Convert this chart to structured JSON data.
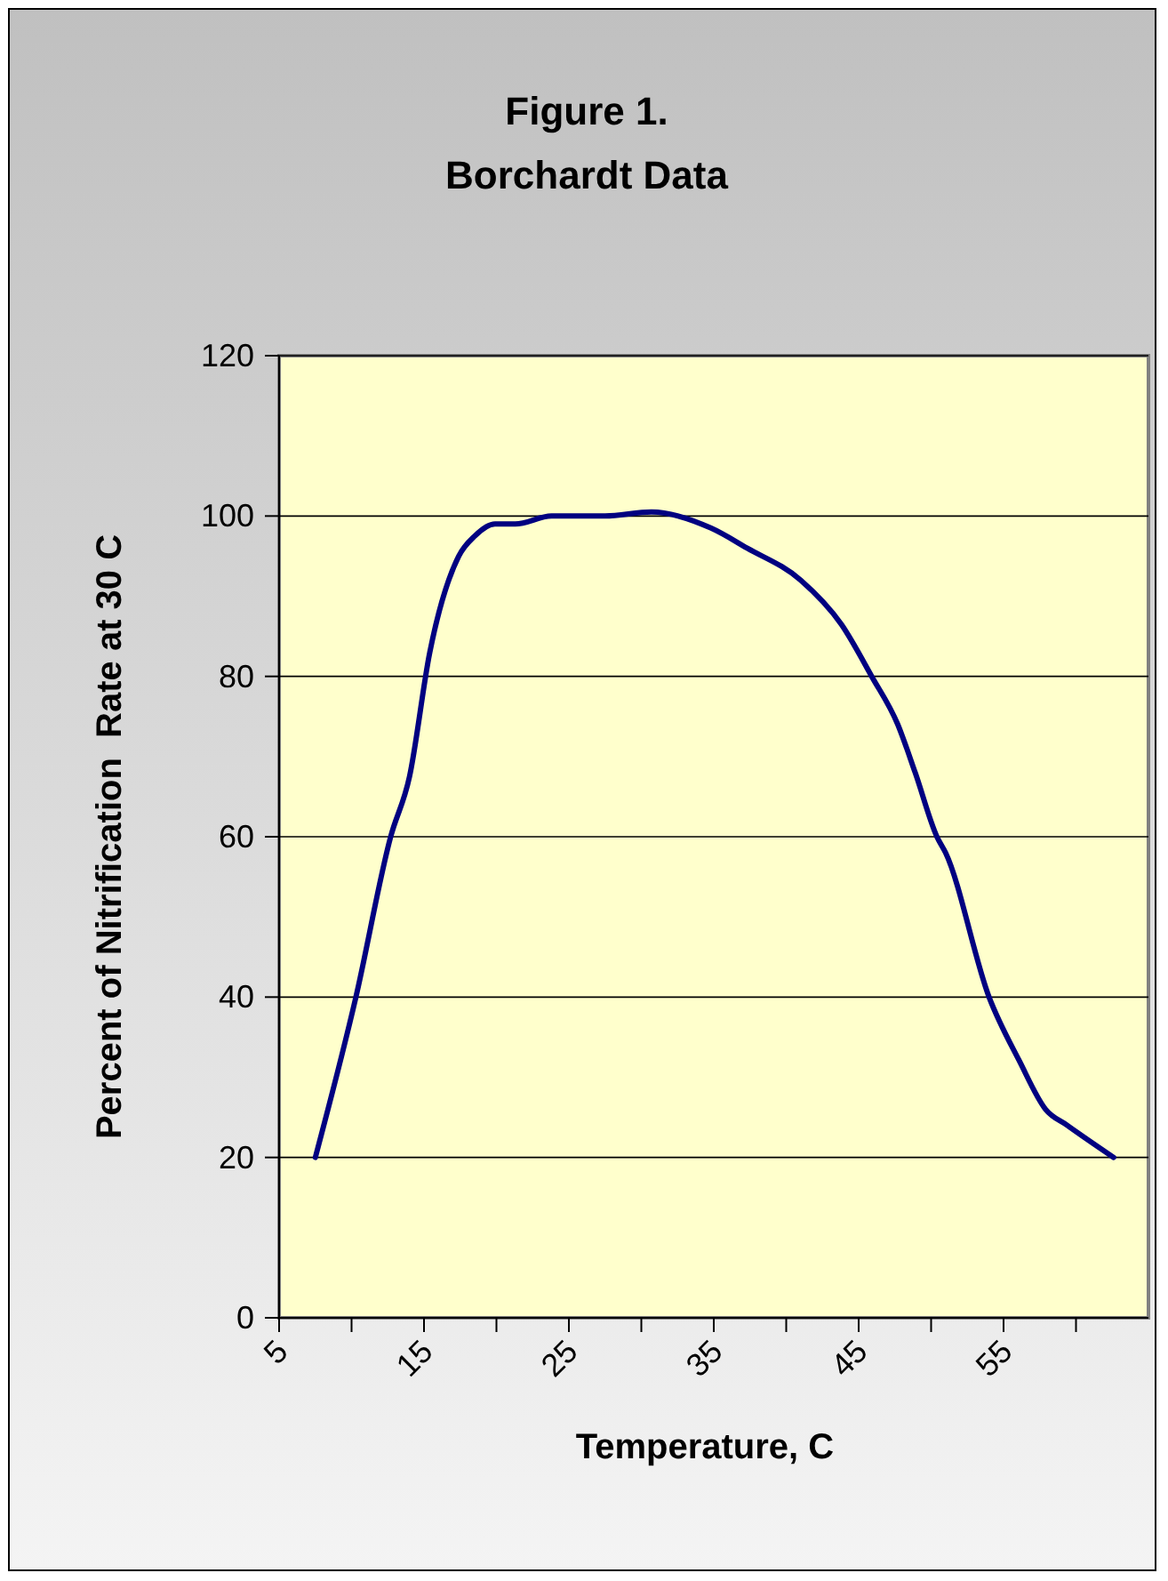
{
  "chart_data": {
    "type": "line",
    "title": "Figure 1.\nBorchardt Data",
    "xlabel": "Temperature, C",
    "ylabel": "Percent of Nitrification  Rate at 30 C",
    "x": [
      7.5,
      10.3,
      12.7,
      14,
      15.4,
      17.4,
      18.5,
      19.9,
      21.3,
      23.8,
      27.5,
      30.7,
      34.8,
      37.3,
      41,
      43.8,
      45.9,
      47.7,
      48.9,
      50.4,
      51,
      54,
      56.1,
      57.9,
      59.4,
      62.6
    ],
    "series": [
      {
        "color": "#000080",
        "values": [
          20,
          40,
          60,
          67.5,
          83,
          95,
          97.5,
          99,
          99,
          100,
          100,
          100.5,
          98.5,
          96,
          92,
          86.5,
          80,
          74,
          68,
          60,
          58,
          40,
          32,
          26,
          24,
          20
        ]
      }
    ],
    "xlim": [
      5,
      65
    ],
    "xticks": [
      5,
      {
        "value": 10,
        "label": null
      },
      15,
      {
        "value": 20,
        "label": null
      },
      25,
      {
        "value": 30,
        "label": null
      },
      35,
      {
        "value": 40,
        "label": null
      },
      45,
      {
        "value": 50,
        "label": null
      },
      55,
      {
        "value": 60,
        "label": null
      }
    ],
    "ylim": [
      0,
      120
    ],
    "yticks": [
      0,
      20,
      40,
      60,
      80,
      100,
      120
    ],
    "grid": "y",
    "marker": "none",
    "line_style": "solid"
  }
}
